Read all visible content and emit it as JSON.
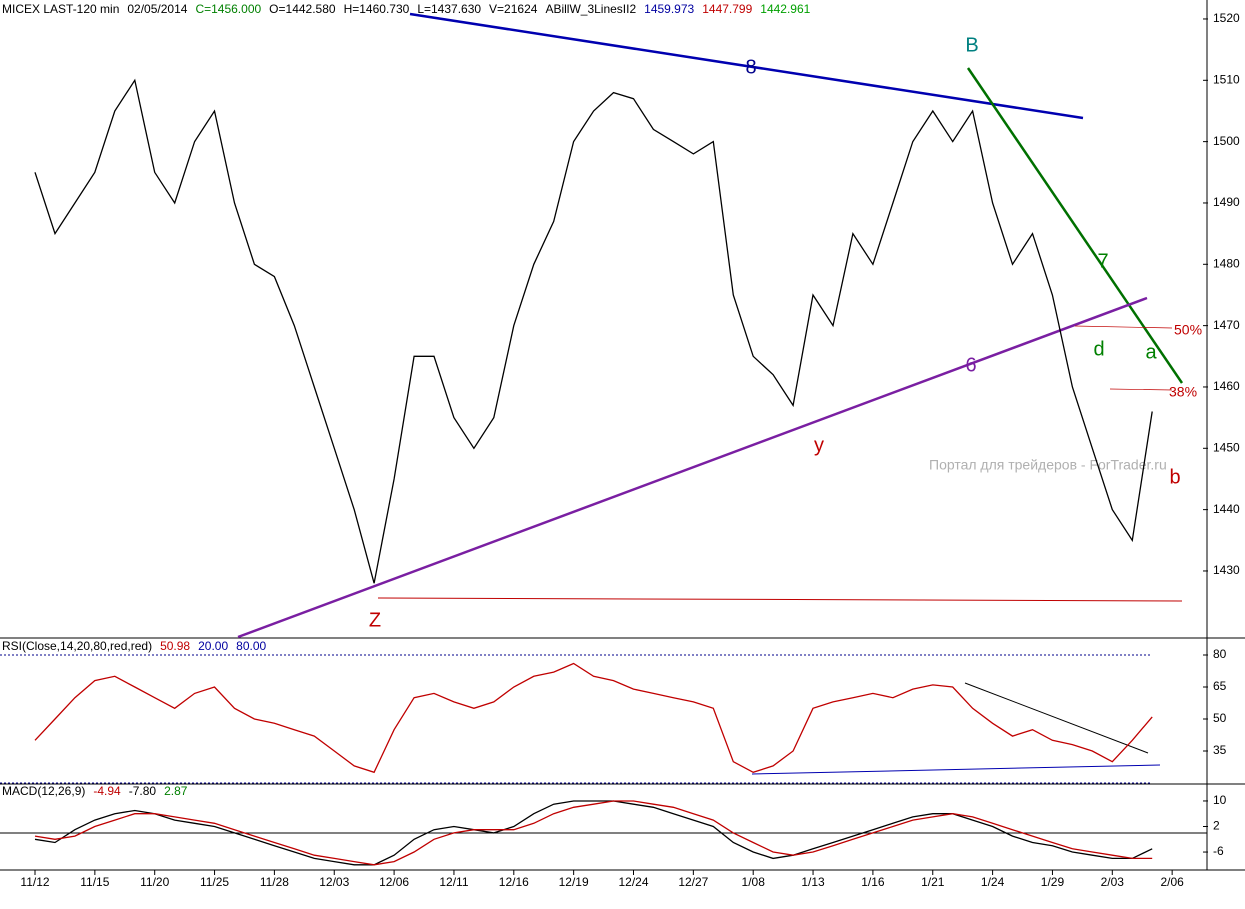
{
  "chart_data": [
    {
      "type": "line",
      "header": [
        {
          "text": "MICEX LAST-120 min",
          "color": "#000000"
        },
        {
          "text": "02/05/2014",
          "color": "#000000"
        },
        {
          "text": "C=1456.000",
          "color": "#008000"
        },
        {
          "text": "O=1442.580",
          "color": "#000000"
        },
        {
          "text": "H=1460.730",
          "color": "#000000"
        },
        {
          "text": "L=1437.630",
          "color": "#000000"
        },
        {
          "text": "V=21624",
          "color": "#000000"
        },
        {
          "text": "ABillW_3LinesII2",
          "color": "#000000"
        },
        {
          "text": "1459.973",
          "color": "#0000a0"
        },
        {
          "text": "1447.799",
          "color": "#c00000"
        },
        {
          "text": "1442.961",
          "color": "#00a000"
        }
      ],
      "values": [
        1495,
        1485,
        1490,
        1495,
        1505,
        1510,
        1495,
        1490,
        1500,
        1505,
        1490,
        1480,
        1478,
        1470,
        1460,
        1450,
        1440,
        1428,
        1445,
        1465,
        1465,
        1455,
        1450,
        1455,
        1470,
        1480,
        1487,
        1500,
        1505,
        1508,
        1507,
        1502,
        1500,
        1498,
        1500,
        1475,
        1465,
        1462,
        1457,
        1475,
        1470,
        1485,
        1480,
        1490,
        1500,
        1505,
        1500,
        1505,
        1490,
        1480,
        1485,
        1475,
        1460,
        1450,
        1440,
        1435,
        1456,
        null
      ],
      "color": "#000000",
      "ylim": [
        1420,
        1522
      ],
      "yticks": [
        1430,
        1440,
        1450,
        1460,
        1470,
        1480,
        1490,
        1500,
        1510,
        1520
      ],
      "annotations": [
        "8",
        "B",
        "7",
        "6",
        "y",
        "Z",
        "d",
        "a",
        "b",
        "50%",
        "38%",
        "Портал для трейдеров - ForTrader.ru"
      ]
    },
    {
      "type": "line",
      "header": [
        {
          "text": "RSI(Close,14,20,80,red,red)",
          "color": "#000000"
        },
        {
          "text": "50.98",
          "color": "#c00000"
        },
        {
          "text": "20.00",
          "color": "#0000a0"
        },
        {
          "text": "80.00",
          "color": "#0000a0"
        }
      ],
      "values": [
        40,
        50,
        60,
        68,
        70,
        65,
        60,
        55,
        62,
        65,
        55,
        50,
        48,
        45,
        42,
        35,
        28,
        25,
        45,
        60,
        62,
        58,
        55,
        58,
        65,
        70,
        72,
        76,
        70,
        68,
        64,
        62,
        60,
        58,
        55,
        30,
        25,
        28,
        35,
        55,
        58,
        60,
        62,
        60,
        64,
        66,
        65,
        55,
        48,
        42,
        45,
        40,
        38,
        35,
        30,
        40,
        51,
        null
      ],
      "color": "#c00000",
      "ylim": [
        20,
        83
      ],
      "yticks": [
        35,
        50,
        65,
        80
      ]
    },
    {
      "type": "line",
      "header": [
        {
          "text": "MACD(12,26,9)",
          "color": "#000000"
        },
        {
          "text": "-4.94",
          "color": "#c00000"
        },
        {
          "text": "-7.80",
          "color": "#000000"
        },
        {
          "text": "2.87",
          "color": "#008000"
        }
      ],
      "categories": [
        "11/12",
        null,
        null,
        "11/15",
        null,
        null,
        "11/20",
        null,
        null,
        "11/25",
        null,
        null,
        "11/28",
        null,
        null,
        "12/03",
        null,
        null,
        "12/06",
        null,
        null,
        "12/11",
        null,
        null,
        "12/16",
        null,
        null,
        "12/19",
        null,
        null,
        "12/24",
        null,
        null,
        "12/27",
        null,
        null,
        "1/08",
        null,
        null,
        "1/13",
        null,
        null,
        "1/16",
        null,
        null,
        "1/21",
        null,
        null,
        "1/24",
        null,
        null,
        "1/29",
        null,
        null,
        "2/03",
        null,
        null,
        "2/06"
      ],
      "series": [
        {
          "color": "#000000",
          "values": [
            -2,
            -3,
            1,
            4,
            6,
            7,
            6,
            4,
            3,
            2,
            0,
            -2,
            -4,
            -6,
            -8,
            -9,
            -10,
            -10,
            -7,
            -2,
            1,
            2,
            1,
            0,
            2,
            6,
            9,
            10,
            10,
            10,
            9,
            8,
            6,
            4,
            2,
            -3,
            -6,
            -8,
            -7,
            -5,
            -3,
            -1,
            1,
            3,
            5,
            6,
            6,
            4,
            2,
            -1,
            -3,
            -4,
            -6,
            -7,
            -8,
            -8,
            -5,
            null
          ]
        },
        {
          "color": "#c00000",
          "values": [
            -1,
            -2,
            -1,
            2,
            4,
            6,
            6,
            5,
            4,
            3,
            1,
            -1,
            -3,
            -5,
            -7,
            -8,
            -9,
            -10,
            -9,
            -6,
            -2,
            0,
            1,
            1,
            1,
            3,
            6,
            8,
            9,
            10,
            10,
            9,
            8,
            6,
            4,
            0,
            -3,
            -6,
            -7,
            -6,
            -4,
            -2,
            0,
            2,
            4,
            5,
            6,
            5,
            3,
            1,
            -1,
            -3,
            -5,
            -6,
            -7,
            -8,
            -8,
            null
          ]
        }
      ],
      "ylim": [
        -11,
        15
      ],
      "yticks": [
        -6,
        2,
        10
      ]
    }
  ]
}
